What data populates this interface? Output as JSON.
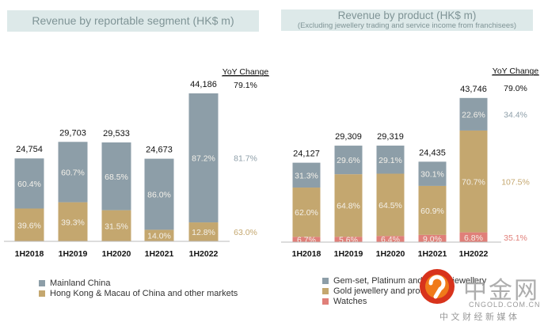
{
  "chart_data": [
    {
      "type": "bar",
      "stacked": true,
      "title": "Revenue by reportable segment (HK$ m)",
      "subtitle": "",
      "categories": [
        "1H2018",
        "1H2019",
        "1H2020",
        "1H2021",
        "1H2022"
      ],
      "totals": [
        24754,
        29703,
        29533,
        24673,
        44186
      ],
      "totals_labels": [
        "24,754",
        "29,703",
        "29,533",
        "24,673",
        "44,186"
      ],
      "series": [
        {
          "name": "Hong Kong & Macau of China and other markets",
          "color": "#c4a76f",
          "share_pct": [
            39.6,
            39.3,
            31.5,
            14.0,
            12.8
          ],
          "labels": [
            "39.6%",
            "39.3%",
            "31.5%",
            "14.0%",
            "12.8%"
          ],
          "yoy": "63.0%"
        },
        {
          "name": "Mainland China",
          "color": "#8d9ea8",
          "share_pct": [
            60.4,
            60.7,
            68.5,
            86.0,
            87.2
          ],
          "labels": [
            "60.4%",
            "60.7%",
            "68.5%",
            "86.0%",
            "87.2%"
          ],
          "yoy": "81.7%"
        }
      ],
      "yoy_header": "YoY Change",
      "yoy_total": "79.1%",
      "legend": [
        "Mainland China",
        "Hong Kong & Macau of China and other markets"
      ],
      "legend_placement": "bottom-left"
    },
    {
      "type": "bar",
      "stacked": true,
      "title": "Revenue by product (HK$ m)",
      "subtitle": "(Excluding jewellery trading and service income from franchisees)",
      "categories": [
        "1H2018",
        "1H2019",
        "1H2020",
        "1H2021",
        "1H2022"
      ],
      "totals": [
        24127,
        29309,
        29319,
        24435,
        43746
      ],
      "totals_labels": [
        "24,127",
        "29,309",
        "29,319",
        "24,435",
        "43,746"
      ],
      "series": [
        {
          "name": "Watches",
          "color": "#e07f79",
          "share_pct": [
            6.7,
            5.6,
            6.4,
            9.0,
            6.8
          ],
          "labels": [
            "6.7%",
            "5.6%",
            "6.4%",
            "9.0%",
            "6.8%"
          ],
          "yoy": "35.1%"
        },
        {
          "name": "Gold jewellery and products",
          "color": "#c4a76f",
          "share_pct": [
            62.0,
            64.8,
            64.5,
            60.9,
            70.7
          ],
          "labels": [
            "62.0%",
            "64.8%",
            "64.5%",
            "60.9%",
            "70.7%"
          ],
          "yoy": "107.5%"
        },
        {
          "name": "Gem-set, Platinum and K-gold jewellery",
          "color": "#8d9ea8",
          "share_pct": [
            31.3,
            29.6,
            29.1,
            30.1,
            22.6
          ],
          "labels": [
            "31.3%",
            "29.6%",
            "29.1%",
            "30.1%",
            "22.6%"
          ],
          "yoy": "34.4%"
        }
      ],
      "yoy_header": "YoY Change",
      "yoy_total": "79.0%",
      "legend": [
        "Gem-set, Platinum and K-gold jewellery",
        "Gold jewellery and products",
        "Watches"
      ],
      "legend_placement": "bottom-left"
    }
  ],
  "legend_left": [
    {
      "label": "Mainland China",
      "color": "#8d9ea8"
    },
    {
      "label": "Hong Kong & Macau of China and other markets",
      "color": "#c4a76f"
    }
  ],
  "legend_right": [
    {
      "label": "Gem-set, Platinum and K-gold jewellery",
      "color": "#8d9ea8"
    },
    {
      "label": "Gold jewellery and products",
      "color": "#c4a76f"
    },
    {
      "label": "Watches",
      "color": "#e07f79"
    }
  ],
  "watermark": {
    "cn_name": "中金网",
    "domain": "CNGOLD.COM.CN",
    "tagline": "中 文 财 经 新 媒 体"
  }
}
